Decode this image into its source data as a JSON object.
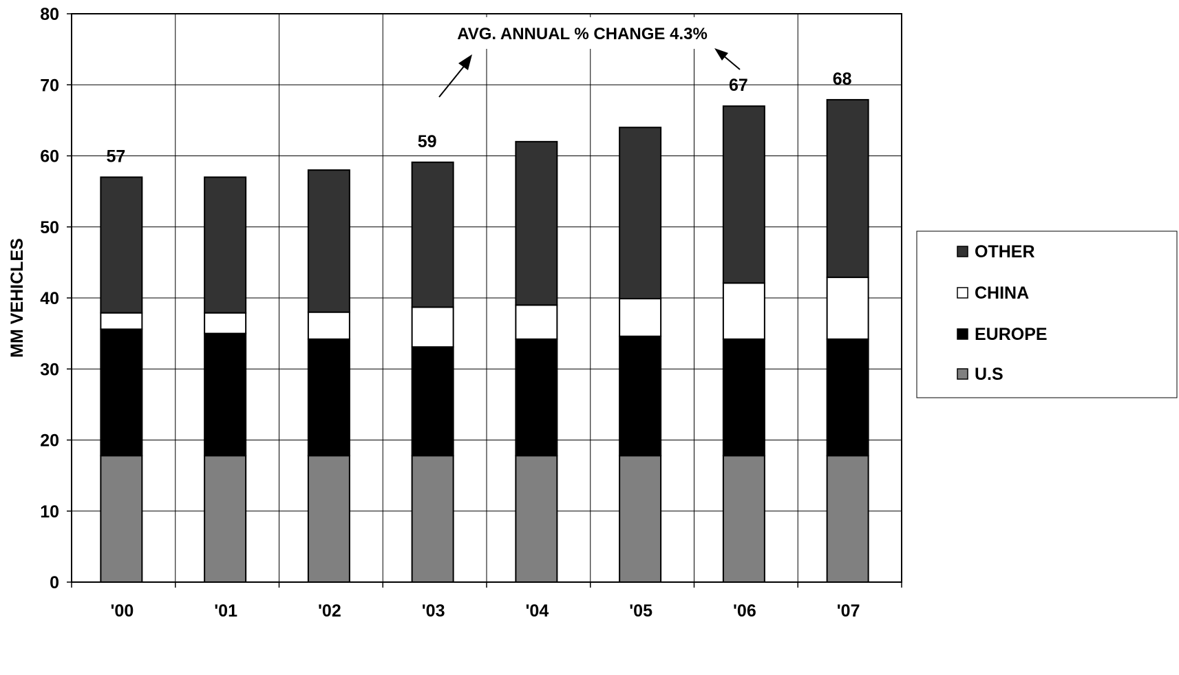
{
  "chart_data": {
    "type": "bar",
    "stacked": true,
    "title": "",
    "xlabel": "",
    "ylabel": "MM VEHICLES",
    "ylim": [
      0,
      80
    ],
    "yticks": [
      0,
      10,
      20,
      30,
      40,
      50,
      60,
      70,
      80
    ],
    "grid": true,
    "legend_position": "right",
    "categories": [
      "'00",
      "'01",
      "'02",
      "'03",
      "'04",
      "'05",
      "'06",
      "'07"
    ],
    "series": [
      {
        "name": "U.S",
        "color": "#808080",
        "values": [
          17.8,
          17.8,
          17.8,
          17.8,
          17.8,
          17.8,
          17.8,
          17.8
        ]
      },
      {
        "name": "EUROPE",
        "color": "#000000",
        "values": [
          17.8,
          17.2,
          16.4,
          15.3,
          16.4,
          16.8,
          16.4,
          16.4
        ]
      },
      {
        "name": "CHINA",
        "color": "#ffffff",
        "values": [
          2.3,
          2.9,
          3.8,
          5.6,
          4.8,
          5.3,
          7.9,
          8.7
        ]
      },
      {
        "name": "OTHER",
        "color": "#333333",
        "values": [
          19.1,
          19.1,
          20.0,
          20.4,
          23.0,
          24.1,
          24.9,
          25.0
        ]
      }
    ],
    "data_labels": [
      "57",
      "",
      "",
      "59",
      "",
      "",
      "67",
      "68"
    ],
    "annotation": {
      "text": "AVG. ANNUAL % CHANGE 4.3%"
    }
  }
}
